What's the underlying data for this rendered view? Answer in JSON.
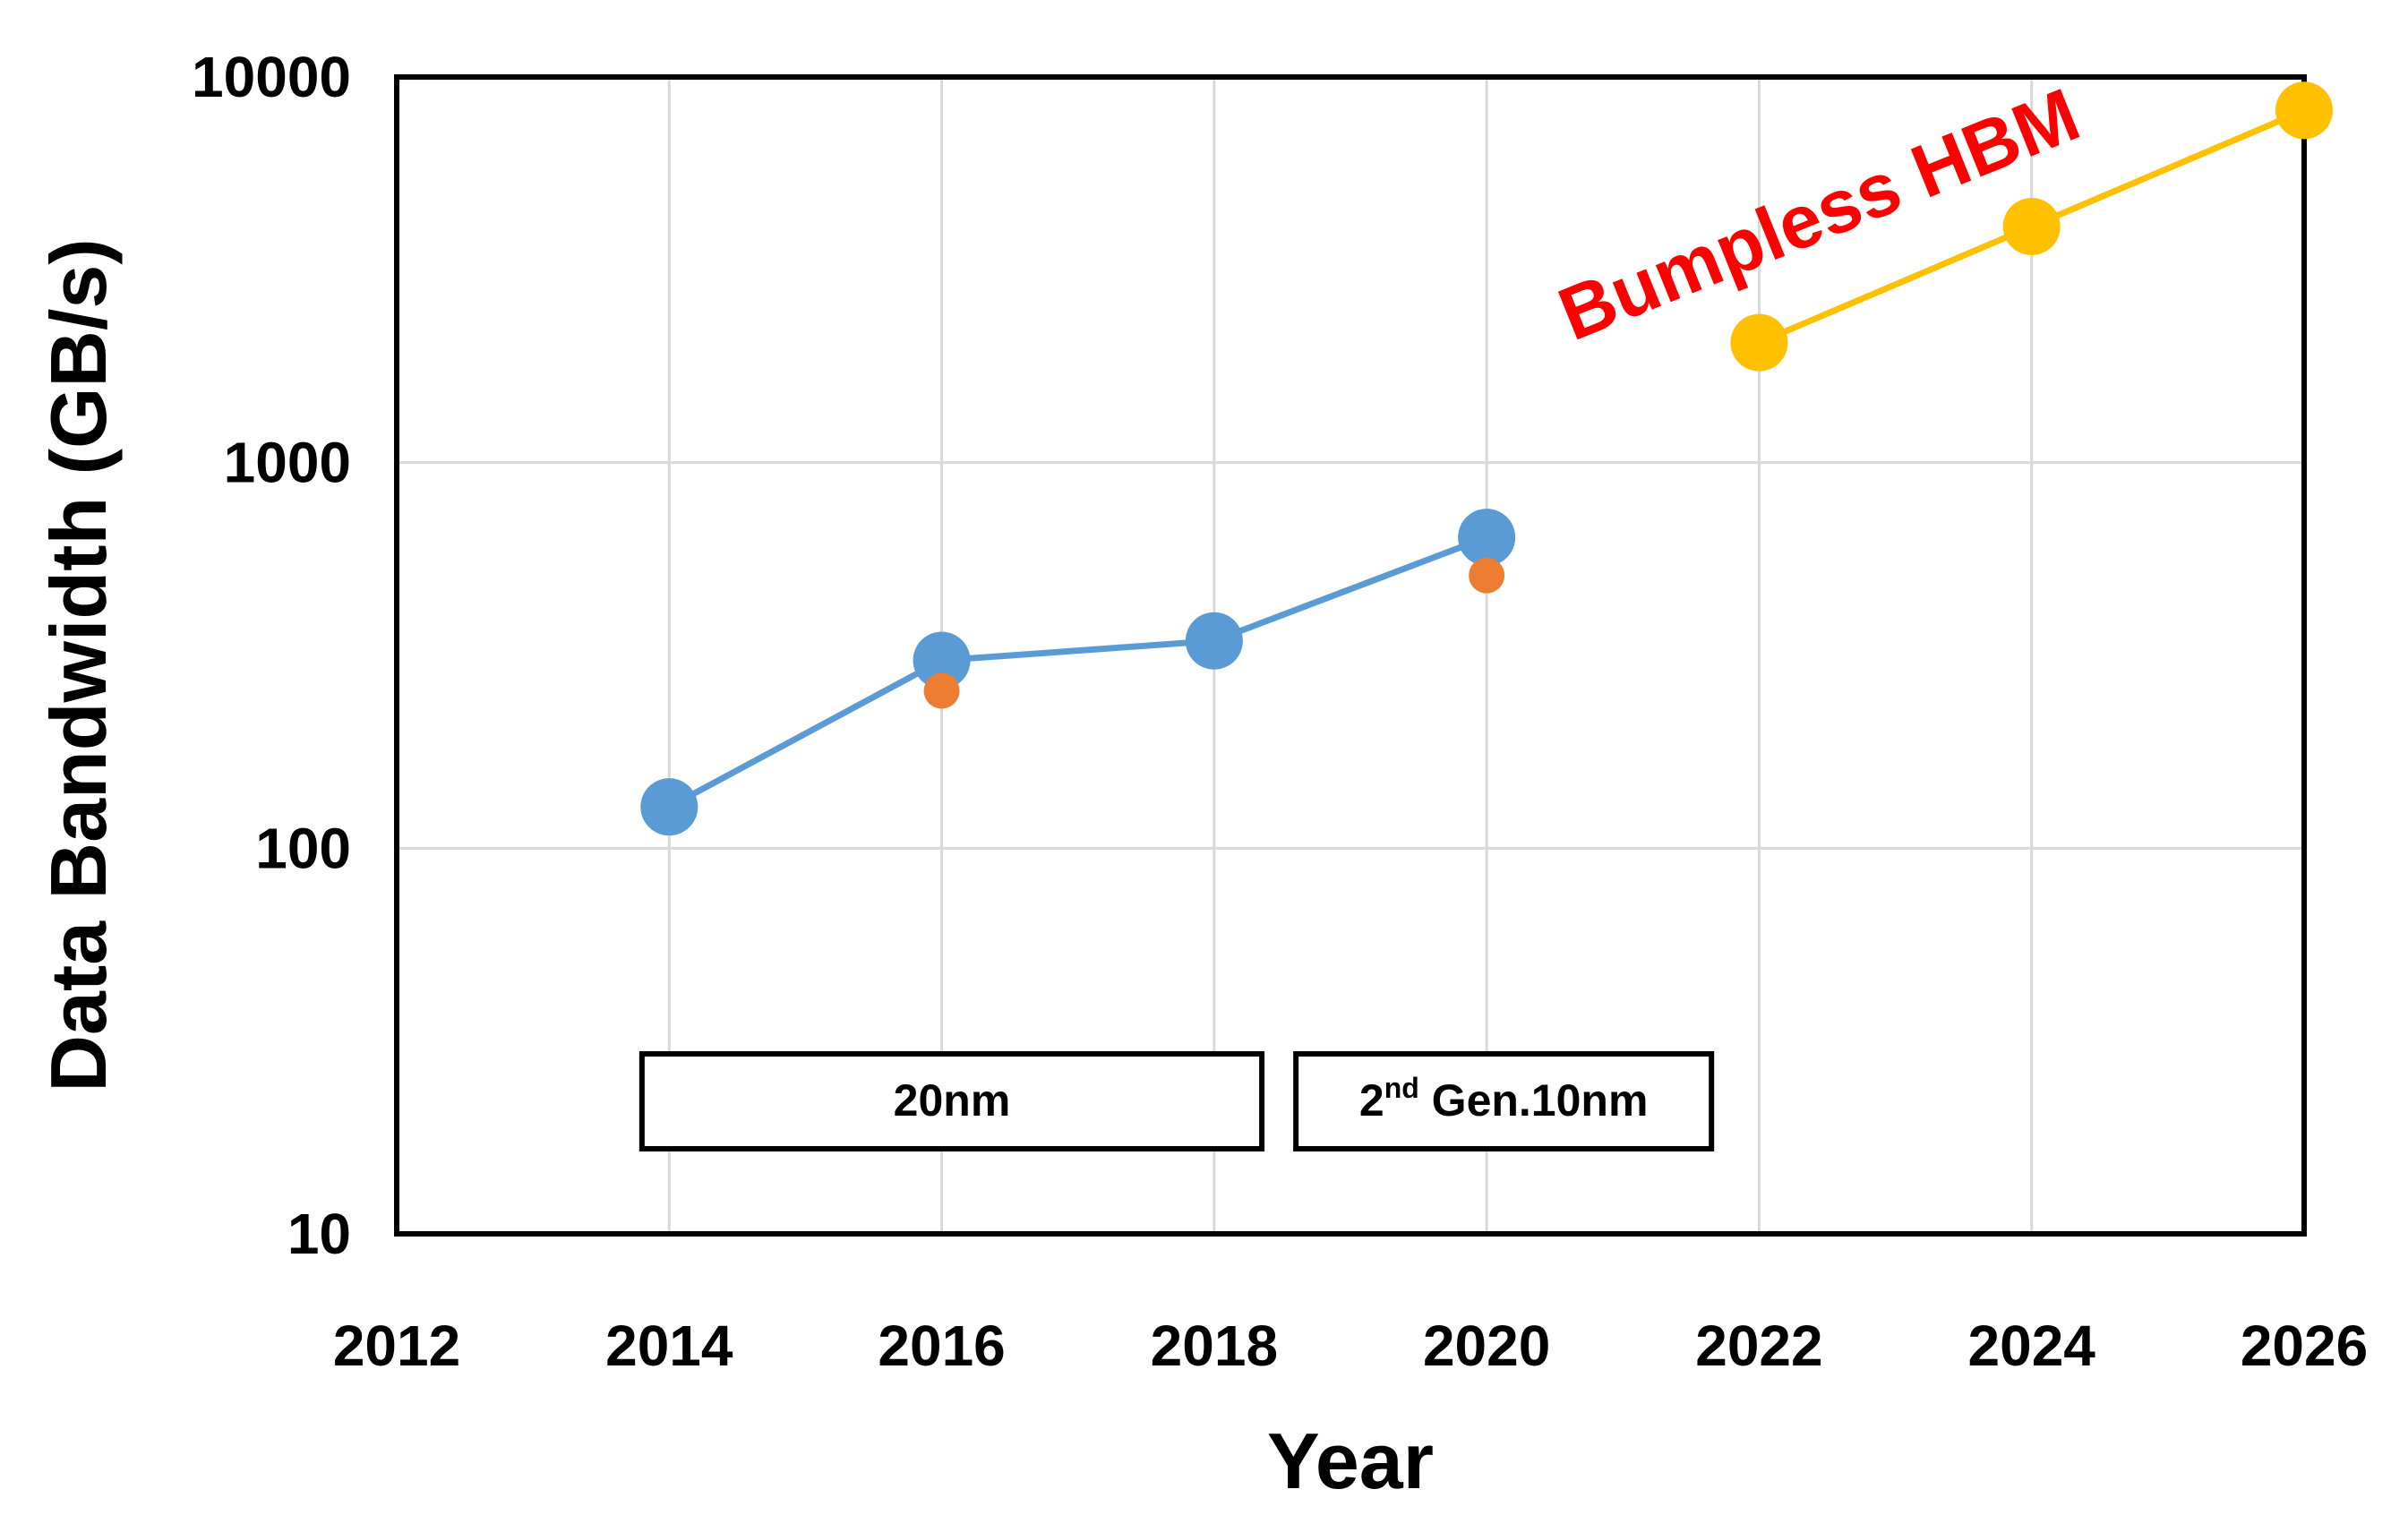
{
  "chart_data": {
    "type": "line",
    "xlabel": "Year",
    "ylabel": "Data Bandwidth (GB/s)",
    "xlim": [
      2012,
      2026
    ],
    "ylim": [
      10,
      10000
    ],
    "y_scale": "log",
    "x_ticks": [
      "2012",
      "2014",
      "2016",
      "2018",
      "2020",
      "2022",
      "2024",
      "2026"
    ],
    "y_ticks": [
      "10",
      "100",
      "1000",
      "10000"
    ],
    "grid": true,
    "legend": "none",
    "series": [
      {
        "color": "#5b9bd5",
        "marker": "large-circle",
        "line": true,
        "x": [
          2014,
          2016,
          2018,
          2020
        ],
        "y": [
          128,
          307,
          345,
          640
        ]
      },
      {
        "color": "#ed7d31",
        "marker": "small-circle",
        "line": false,
        "x": [
          2016,
          2020
        ],
        "y": [
          256,
          510
        ]
      },
      {
        "color": "#ffc000",
        "marker": "large-circle",
        "line": true,
        "x": [
          2022,
          2024,
          2026
        ],
        "y": [
          2048,
          4096,
          8192
        ]
      }
    ],
    "annotations": [
      {
        "text": "Bumpless HBM",
        "color": "#ff0000"
      }
    ],
    "boxes": [
      {
        "text": "20nm",
        "x_start": 2013.8,
        "x_end": 2018.35
      },
      {
        "sup": "2",
        "sup_suffix": "nd",
        "text": " Gen.10nm",
        "x_start": 2018.6,
        "x_end": 2021.65
      }
    ]
  }
}
